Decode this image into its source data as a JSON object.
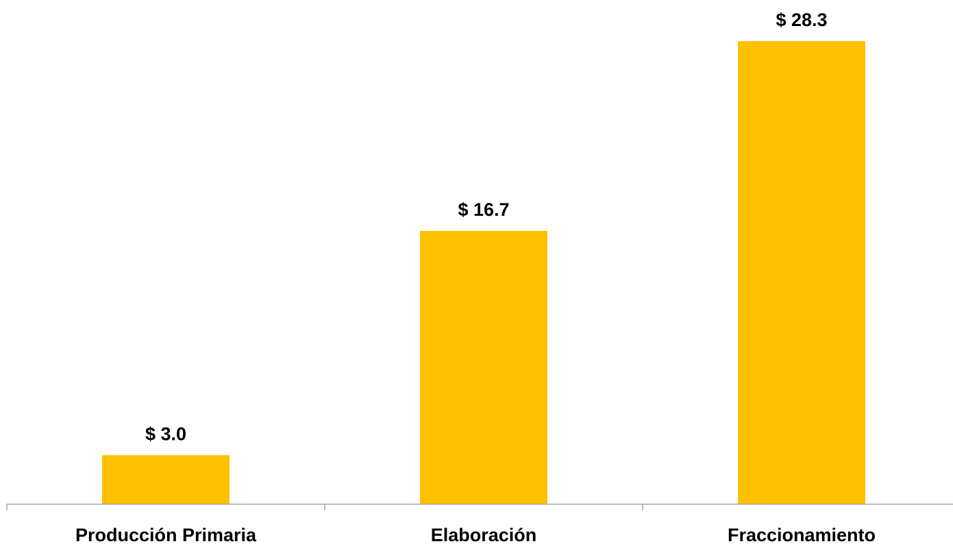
{
  "chart_data": {
    "type": "bar",
    "categories": [
      "Producción Primaria",
      "Elaboración",
      "Fraccionamiento"
    ],
    "values": [
      3.0,
      16.7,
      28.3
    ],
    "value_labels": [
      "$ 3.0",
      "$ 16.7",
      "$ 28.3"
    ],
    "title": "",
    "xlabel": "",
    "ylabel": "",
    "ylim": [
      0,
      28.3
    ],
    "grid": false,
    "legend": "none",
    "bar_color": "#FFC000",
    "axis_color": "#A6A6A6",
    "text_color": "#000000"
  }
}
